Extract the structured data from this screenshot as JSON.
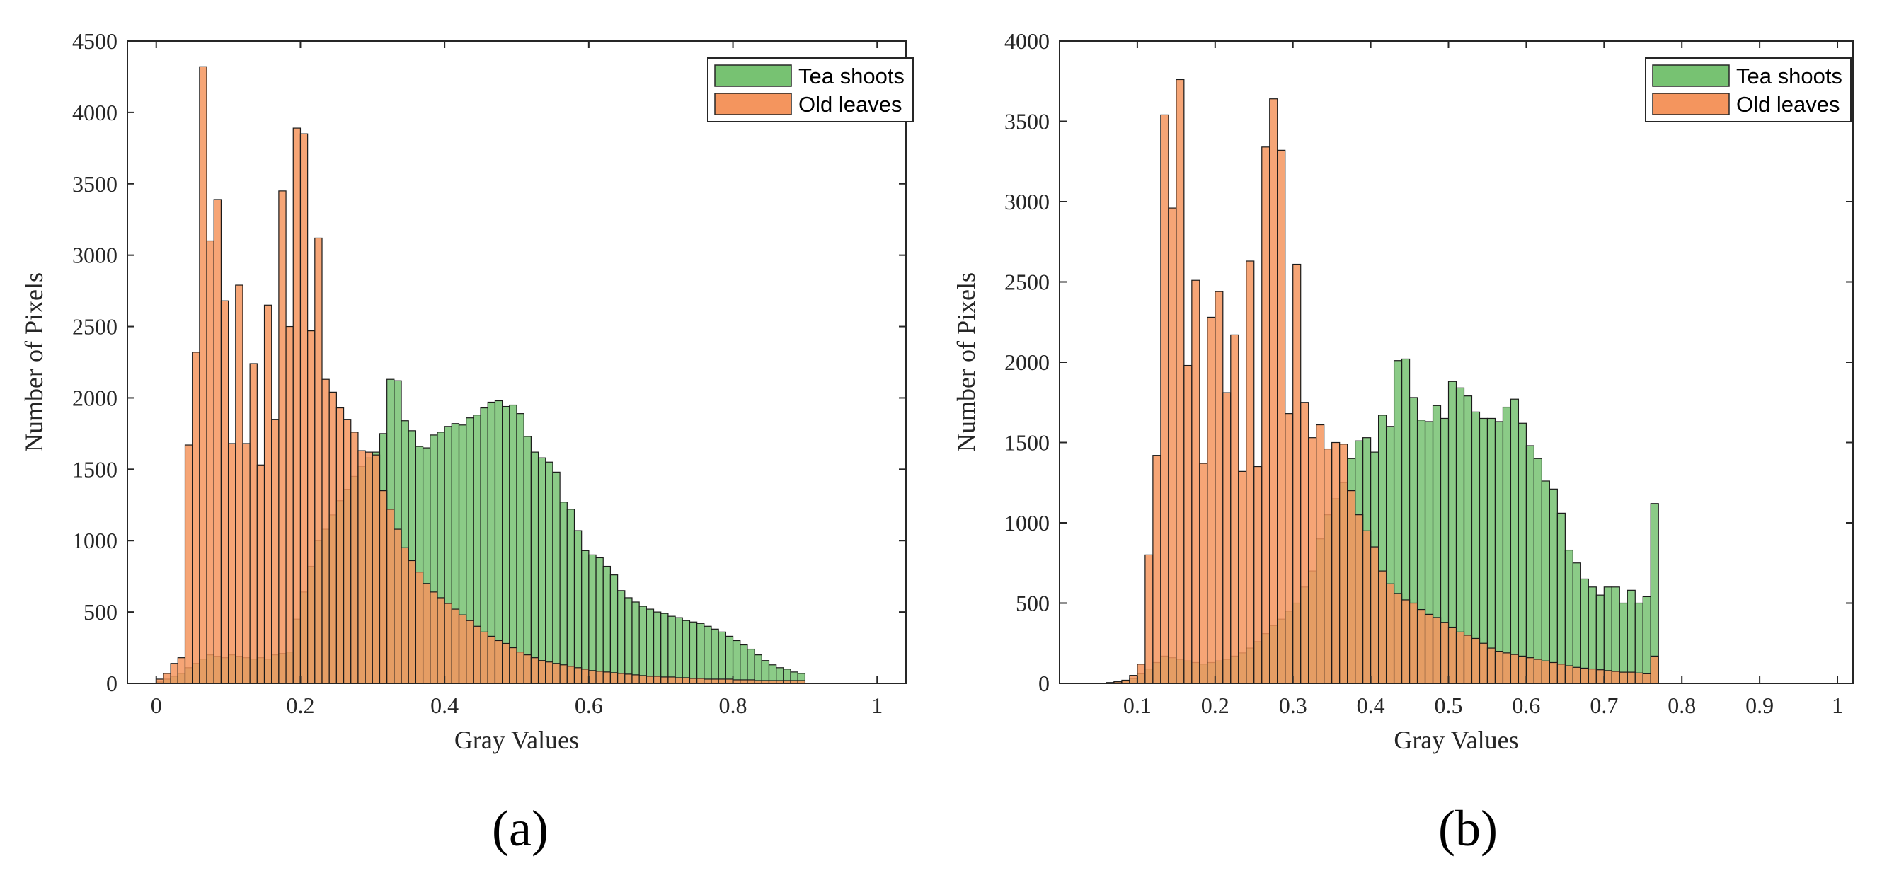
{
  "chart_data": [
    {
      "type": "bar",
      "subtype": "overlapping-histogram",
      "panel_label": "(a)",
      "xlabel": "Gray Values",
      "ylabel": "Number of Pixels",
      "xlim": [
        -0.04,
        1.04
      ],
      "ylim": [
        0,
        4500
      ],
      "xticks": [
        0,
        0.2,
        0.4,
        0.6,
        0.8,
        1
      ],
      "xtick_labels": [
        "0",
        "0.2",
        "0.4",
        "0.6",
        "0.8",
        "1"
      ],
      "yticks": [
        0,
        500,
        1000,
        1500,
        2000,
        2500,
        3000,
        3500,
        4000,
        4500
      ],
      "ytick_labels": [
        "0",
        "500",
        "1000",
        "1500",
        "2000",
        "2500",
        "3000",
        "3500",
        "4000",
        "4500"
      ],
      "legend": [
        "Tea shoots",
        "Old leaves"
      ],
      "legend_position": "top-right",
      "bin_start": 0,
      "bin_width": 0.01,
      "series": [
        {
          "name": "Tea shoots",
          "color": "#77c272",
          "values": [
            10,
            30,
            50,
            70,
            110,
            140,
            170,
            200,
            190,
            180,
            200,
            190,
            180,
            170,
            180,
            170,
            200,
            210,
            220,
            450,
            640,
            820,
            1000,
            1080,
            1180,
            1280,
            1360,
            1450,
            1520,
            1580,
            1620,
            1750,
            2130,
            2120,
            1840,
            1770,
            1660,
            1650,
            1740,
            1760,
            1800,
            1820,
            1810,
            1860,
            1880,
            1930,
            1970,
            1980,
            1940,
            1950,
            1890,
            1730,
            1620,
            1580,
            1550,
            1480,
            1270,
            1220,
            1070,
            930,
            900,
            880,
            820,
            760,
            650,
            600,
            570,
            540,
            520,
            500,
            490,
            470,
            460,
            440,
            430,
            420,
            400,
            380,
            360,
            330,
            300,
            270,
            240,
            200,
            160,
            130,
            110,
            100,
            80,
            70
          ]
        },
        {
          "name": "Old leaves",
          "color": "#f4955e",
          "values": [
            30,
            70,
            140,
            180,
            1670,
            2320,
            4320,
            3100,
            3390,
            2680,
            1680,
            2790,
            1680,
            2240,
            1530,
            2650,
            1850,
            3450,
            2500,
            3890,
            3850,
            2470,
            3120,
            2130,
            2040,
            1930,
            1850,
            1760,
            1630,
            1620,
            1600,
            1350,
            1220,
            1080,
            950,
            860,
            780,
            700,
            640,
            600,
            560,
            520,
            480,
            440,
            400,
            360,
            330,
            300,
            280,
            250,
            220,
            200,
            180,
            160,
            150,
            140,
            130,
            120,
            110,
            100,
            90,
            85,
            80,
            75,
            70,
            65,
            60,
            55,
            50,
            50,
            45,
            45,
            40,
            40,
            35,
            35,
            30,
            30,
            30,
            30,
            25,
            25,
            25,
            20,
            20,
            20,
            20,
            20,
            20,
            20
          ]
        }
      ]
    },
    {
      "type": "bar",
      "subtype": "overlapping-histogram",
      "panel_label": "(b)",
      "xlabel": "Gray Values",
      "ylabel": "Number of Pixels",
      "xlim": [
        0,
        1.02
      ],
      "ylim": [
        0,
        4000
      ],
      "xticks": [
        0.1,
        0.2,
        0.3,
        0.4,
        0.5,
        0.6,
        0.7,
        0.8,
        0.9,
        1
      ],
      "xtick_labels": [
        "0.1",
        "0.2",
        "0.3",
        "0.4",
        "0.5",
        "0.6",
        "0.7",
        "0.8",
        "0.9",
        "1"
      ],
      "yticks": [
        0,
        500,
        1000,
        1500,
        2000,
        2500,
        3000,
        3500,
        4000
      ],
      "ytick_labels": [
        "0",
        "500",
        "1000",
        "1500",
        "2000",
        "2500",
        "3000",
        "3500",
        "4000"
      ],
      "legend": [
        "Tea shoots",
        "Old leaves"
      ],
      "legend_position": "top-right",
      "bin_start": 0.06,
      "bin_width": 0.01,
      "series": [
        {
          "name": "Tea shoots",
          "color": "#77c272",
          "values": [
            5,
            10,
            15,
            30,
            60,
            90,
            130,
            170,
            160,
            150,
            140,
            130,
            120,
            130,
            140,
            150,
            170,
            190,
            220,
            260,
            310,
            360,
            400,
            450,
            500,
            600,
            700,
            900,
            1050,
            1150,
            1250,
            1400,
            1510,
            1530,
            1440,
            1670,
            1600,
            2010,
            2020,
            1780,
            1640,
            1630,
            1730,
            1650,
            1880,
            1840,
            1790,
            1690,
            1650,
            1650,
            1630,
            1720,
            1770,
            1620,
            1480,
            1400,
            1260,
            1210,
            1060,
            830,
            750,
            650,
            600,
            550,
            600,
            600,
            500,
            580,
            500,
            540,
            1120
          ]
        },
        {
          "name": "Old leaves",
          "color": "#f4955e",
          "values": [
            5,
            10,
            20,
            50,
            120,
            800,
            1420,
            3540,
            2960,
            3760,
            1980,
            2510,
            1370,
            2280,
            2440,
            1810,
            2170,
            1320,
            2630,
            1350,
            3340,
            3640,
            3320,
            1680,
            2610,
            1750,
            1530,
            1610,
            1460,
            1500,
            1490,
            1200,
            1050,
            950,
            850,
            700,
            620,
            560,
            520,
            500,
            460,
            430,
            410,
            380,
            350,
            320,
            300,
            280,
            250,
            220,
            200,
            190,
            180,
            170,
            160,
            150,
            140,
            130,
            120,
            110,
            100,
            95,
            90,
            85,
            80,
            75,
            70,
            70,
            65,
            60,
            170
          ]
        }
      ]
    }
  ]
}
